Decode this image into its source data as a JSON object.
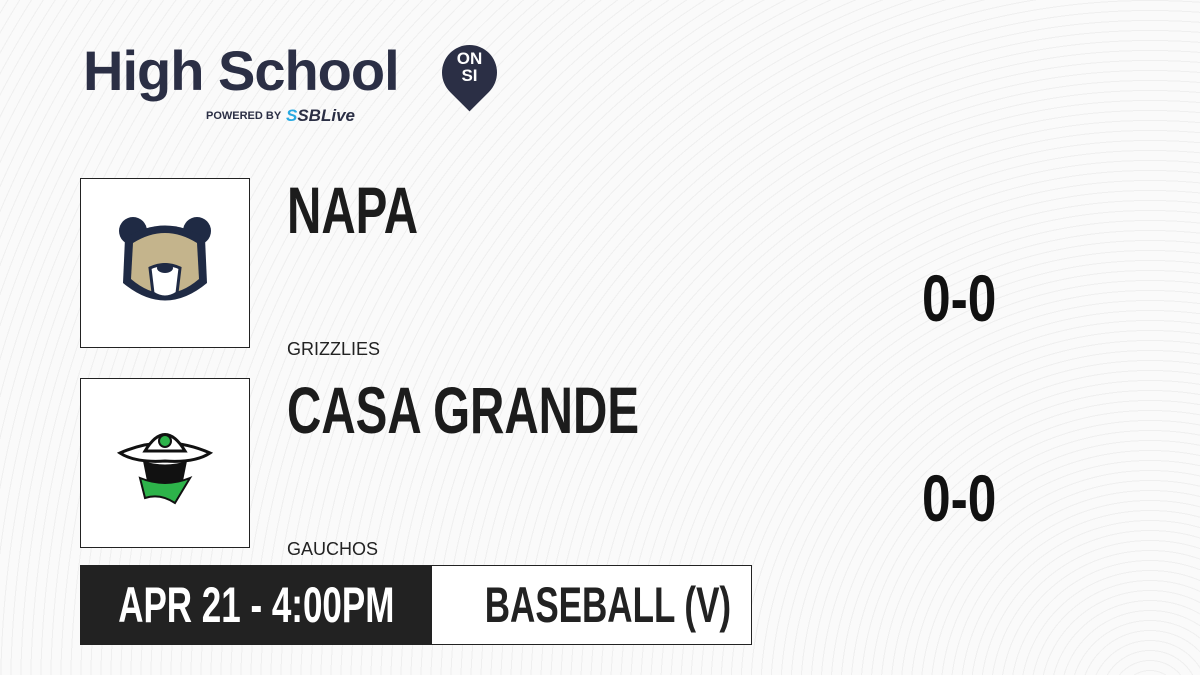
{
  "brand": {
    "title": "High School",
    "pin_line1": "ON",
    "pin_line2": "SI",
    "powered_by": "POWERED BY",
    "sponsor_prefix": "S",
    "sponsor": "SBLive"
  },
  "teams": [
    {
      "name": "NAPA",
      "mascot": "GRIZZLIES",
      "score": "0-0",
      "logo": "grizzly-bear-logo"
    },
    {
      "name": "CASA GRANDE",
      "mascot": "GAUCHOS",
      "score": "0-0",
      "logo": "gaucho-logo"
    }
  ],
  "game": {
    "datetime": "APR 21 - 4:00PM",
    "sport": "BASEBALL (V)"
  },
  "colors": {
    "brand": "#2b2f45",
    "accent": "#29a9e1",
    "dark": "#222222"
  }
}
